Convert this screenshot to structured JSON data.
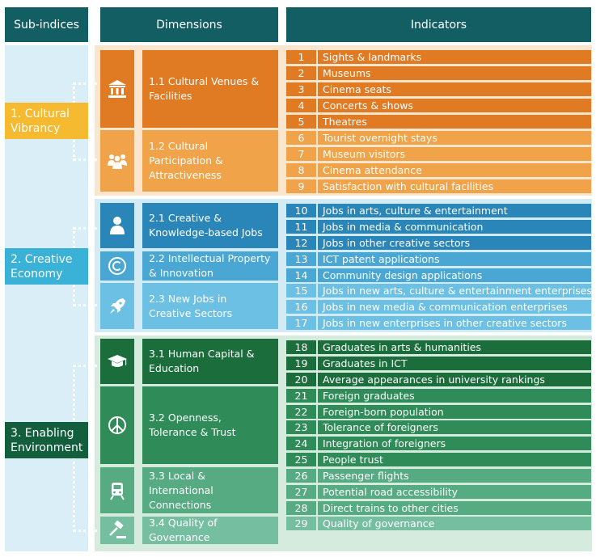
{
  "headers": {
    "subindices": "Sub-indices",
    "dimensions": "Dimensions",
    "indicators": "Indicators"
  },
  "colors": {
    "header": "#135e63",
    "cultural_dark": "#e07a23",
    "cultural_light": "#f0a348",
    "cultural_label": "#f5ba30",
    "creative_dark": "#2a86b9",
    "creative_mid": "#4aa6d3",
    "creative_light": "#6cc0e3",
    "enabling_dark": "#1b6d3c",
    "enabling_mid": "#2f8b57",
    "enabling_light": "#56ab82",
    "enabling_pale": "#76bea0"
  },
  "subindices": [
    {
      "label": "1. Cultural Vibrancy"
    },
    {
      "label": "2. Creative Economy"
    },
    {
      "label": "3. Enabling Environment"
    }
  ],
  "dimensions": [
    {
      "label": "1.1 Cultural Venues & Facilities",
      "icon": "museum-icon"
    },
    {
      "label": "1.2 Cultural Participation & Attractiveness",
      "icon": "people-icon"
    },
    {
      "label": "2.1 Creative & Knowledge-based Jobs",
      "icon": "person-icon"
    },
    {
      "label": "2.2 Intellectual Property & Innovation",
      "icon": "copyright-icon"
    },
    {
      "label": "2.3 New Jobs in Creative Sectors",
      "icon": "rocket-icon"
    },
    {
      "label": "3.1 Human Capital & Education",
      "icon": "graduation-cap-icon"
    },
    {
      "label": "3.2 Openness, Tolerance & Trust",
      "icon": "peace-icon"
    },
    {
      "label": "3.3 Local & International Connections",
      "icon": "train-icon"
    },
    {
      "label": "3.4 Quality of Governance",
      "icon": "gavel-icon"
    }
  ],
  "indicators": [
    {
      "num": "1",
      "label": "Sights & landmarks"
    },
    {
      "num": "2",
      "label": "Museums"
    },
    {
      "num": "3",
      "label": "Cinema seats"
    },
    {
      "num": "4",
      "label": "Concerts & shows"
    },
    {
      "num": "5",
      "label": "Theatres"
    },
    {
      "num": "6",
      "label": "Tourist overnight stays"
    },
    {
      "num": "7",
      "label": "Museum visitors"
    },
    {
      "num": "8",
      "label": "Cinema attendance"
    },
    {
      "num": "9",
      "label": "Satisfaction with cultural facilities"
    },
    {
      "num": "10",
      "label": "Jobs in arts, culture & entertainment"
    },
    {
      "num": "11",
      "label": "Jobs in media & communication"
    },
    {
      "num": "12",
      "label": "Jobs in other creative sectors"
    },
    {
      "num": "13",
      "label": "ICT patent applications"
    },
    {
      "num": "14",
      "label": "Community design applications"
    },
    {
      "num": "15",
      "label": "Jobs in new arts, culture & entertainment enterprises"
    },
    {
      "num": "16",
      "label": "Jobs in new media & communication enterprises"
    },
    {
      "num": "17",
      "label": "Jobs in new enterprises in other creative sectors"
    },
    {
      "num": "18",
      "label": "Graduates in arts & humanities"
    },
    {
      "num": "19",
      "label": "Graduates in ICT"
    },
    {
      "num": "20",
      "label": "Average appearances in university rankings"
    },
    {
      "num": "21",
      "label": "Foreign graduates"
    },
    {
      "num": "22",
      "label": "Foreign-born population"
    },
    {
      "num": "23",
      "label": "Tolerance of foreigners"
    },
    {
      "num": "24",
      "label": "Integration of foreigners"
    },
    {
      "num": "25",
      "label": "People trust"
    },
    {
      "num": "26",
      "label": "Passenger flights"
    },
    {
      "num": "27",
      "label": "Potential road accessibility"
    },
    {
      "num": "28",
      "label": "Direct trains to other cities"
    },
    {
      "num": "29",
      "label": "Quality of governance"
    }
  ]
}
